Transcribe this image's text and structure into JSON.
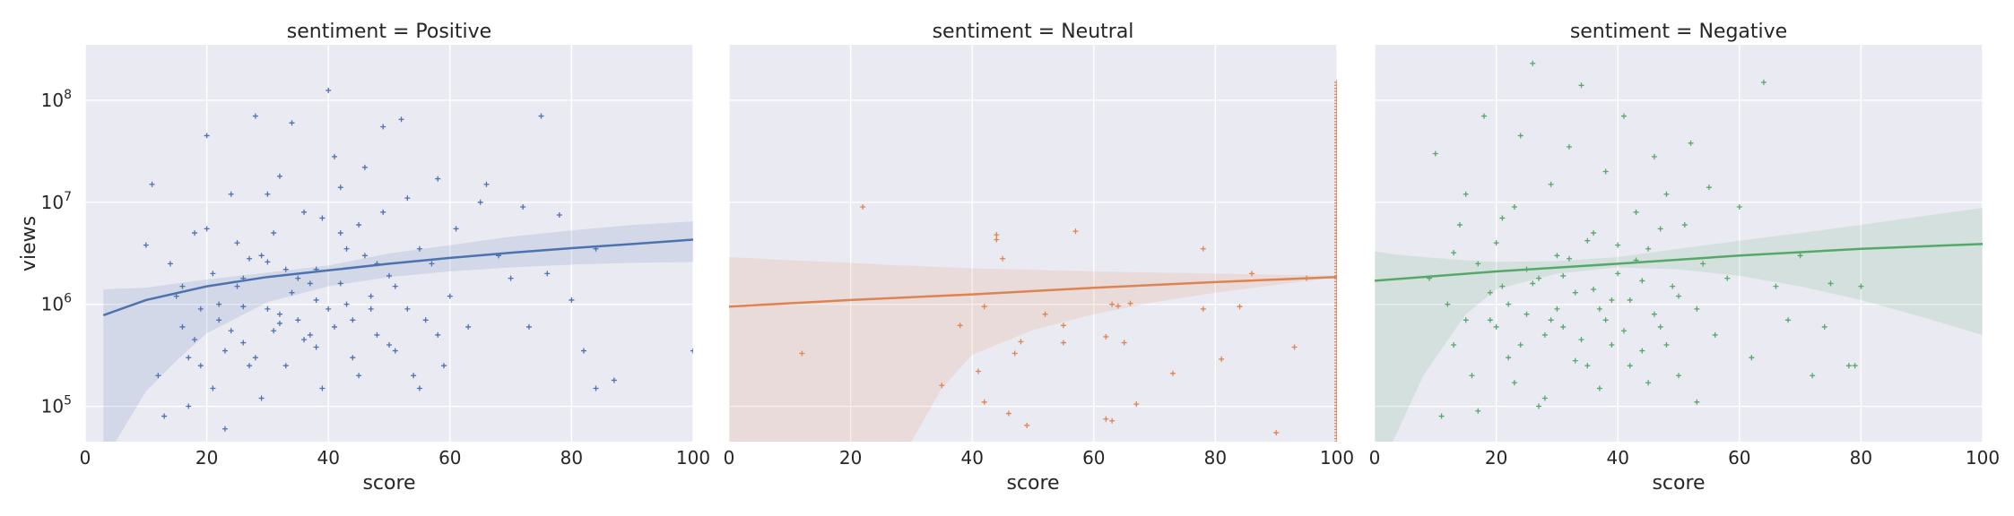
{
  "chart_data": [
    {
      "type": "scatter",
      "title": "sentiment = Positive",
      "xlabel": "score",
      "ylabel": "views",
      "xlim": [
        0,
        100
      ],
      "ylim": [
        45000,
        350000000
      ],
      "yscale": "log",
      "grid": true,
      "color": "#4c72b0",
      "marker": "+",
      "x_ticks": [
        "0",
        "20",
        "40",
        "60",
        "80",
        "100"
      ],
      "y_ticks": [
        "10^5",
        "10^6",
        "10^7",
        "10^8"
      ],
      "trend": {
        "x": [
          3,
          10,
          20,
          30,
          40,
          50,
          60,
          70,
          80,
          90,
          100
        ],
        "y": [
          780000,
          1100000,
          1500000,
          1850000,
          2150000,
          2500000,
          2850000,
          3200000,
          3550000,
          3900000,
          4300000
        ]
      },
      "band": {
        "x": [
          3,
          5,
          10,
          15,
          20,
          30,
          40,
          50,
          60,
          70,
          80,
          90,
          100
        ],
        "lower": [
          1,
          45000,
          140000,
          280000,
          520000,
          1050000,
          1500000,
          1850000,
          2100000,
          2300000,
          2450000,
          2550000,
          2600000
        ],
        "upper": [
          1400000,
          1420000,
          1450000,
          1600000,
          1750000,
          2050000,
          2400000,
          3150000,
          3800000,
          4600000,
          5300000,
          6000000,
          6500000
        ]
      },
      "points": [
        [
          10,
          3800000
        ],
        [
          11,
          15000000
        ],
        [
          14,
          2500000
        ],
        [
          15,
          1200000
        ],
        [
          16,
          600000
        ],
        [
          17,
          300000
        ],
        [
          18,
          5000000
        ],
        [
          19,
          900000
        ],
        [
          20,
          45000000
        ],
        [
          21,
          2000000
        ],
        [
          22,
          700000
        ],
        [
          23,
          350000
        ],
        [
          24,
          12000000
        ],
        [
          25,
          1500000
        ],
        [
          26,
          420000
        ],
        [
          27,
          250000
        ],
        [
          28,
          70000000
        ],
        [
          29,
          3000000
        ],
        [
          30,
          900000
        ],
        [
          31,
          550000
        ],
        [
          32,
          18000000
        ],
        [
          33,
          2200000
        ],
        [
          34,
          60000000
        ],
        [
          35,
          700000
        ],
        [
          36,
          8000000
        ],
        [
          37,
          1600000
        ],
        [
          38,
          380000
        ],
        [
          39,
          150000
        ],
        [
          40,
          125000000
        ],
        [
          41,
          28000000
        ],
        [
          42,
          5000000
        ],
        [
          43,
          1000000
        ],
        [
          44,
          300000
        ],
        [
          45,
          6000000
        ],
        [
          46,
          22000000
        ],
        [
          47,
          900000
        ],
        [
          48,
          2500000
        ],
        [
          49,
          55000000
        ],
        [
          50,
          400000
        ],
        [
          51,
          1500000
        ],
        [
          52,
          65000000
        ],
        [
          53,
          11000000
        ],
        [
          54,
          200000
        ],
        [
          55,
          3500000
        ],
        [
          56,
          700000
        ],
        [
          58,
          17000000
        ],
        [
          59,
          250000
        ],
        [
          60,
          1200000
        ],
        [
          61,
          5500000
        ],
        [
          63,
          600000
        ],
        [
          65,
          10000000
        ],
        [
          66,
          15000000
        ],
        [
          68,
          3000000
        ],
        [
          70,
          1800000
        ],
        [
          72,
          9000000
        ],
        [
          73,
          600000
        ],
        [
          75,
          70000000
        ],
        [
          76,
          2000000
        ],
        [
          78,
          7500000
        ],
        [
          80,
          1100000
        ],
        [
          82,
          350000
        ],
        [
          84,
          3500000
        ],
        [
          84,
          150000
        ],
        [
          87,
          180000
        ],
        [
          100,
          350000
        ],
        [
          12,
          200000
        ],
        [
          13,
          80000
        ],
        [
          16,
          1500000
        ],
        [
          18,
          450000
        ],
        [
          21,
          150000
        ],
        [
          23,
          60000
        ],
        [
          25,
          4000000
        ],
        [
          27,
          2800000
        ],
        [
          29,
          120000
        ],
        [
          31,
          5000000
        ],
        [
          33,
          250000
        ],
        [
          35,
          1800000
        ],
        [
          37,
          500000
        ],
        [
          39,
          7000000
        ],
        [
          41,
          600000
        ],
        [
          43,
          3500000
        ],
        [
          45,
          200000
        ],
        [
          47,
          1200000
        ],
        [
          49,
          8000000
        ],
        [
          51,
          350000
        ],
        [
          53,
          900000
        ],
        [
          55,
          150000
        ],
        [
          57,
          2500000
        ],
        [
          22,
          1000000
        ],
        [
          24,
          550000
        ],
        [
          26,
          1800000
        ],
        [
          28,
          300000
        ],
        [
          30,
          2600000
        ],
        [
          32,
          800000
        ],
        [
          34,
          1300000
        ],
        [
          36,
          450000
        ],
        [
          38,
          2200000
        ],
        [
          40,
          900000
        ],
        [
          42,
          1600000
        ],
        [
          44,
          700000
        ],
        [
          46,
          3000000
        ],
        [
          48,
          500000
        ],
        [
          50,
          1900000
        ],
        [
          19,
          250000
        ],
        [
          26,
          950000
        ],
        [
          32,
          650000
        ],
        [
          38,
          1100000
        ],
        [
          17,
          100000
        ],
        [
          20,
          5500000
        ],
        [
          30,
          12000000
        ],
        [
          42,
          14000000
        ],
        [
          58,
          500000
        ]
      ]
    },
    {
      "type": "scatter",
      "title": "sentiment = Neutral",
      "xlabel": "score",
      "ylabel": "",
      "xlim": [
        0,
        100
      ],
      "ylim": [
        45000,
        350000000
      ],
      "yscale": "log",
      "grid": true,
      "color": "#dd8452",
      "marker": "+",
      "x_ticks": [
        "0",
        "20",
        "40",
        "60",
        "80",
        "100"
      ],
      "trend": {
        "x": [
          0,
          20,
          40,
          60,
          80,
          100
        ],
        "y": [
          950000,
          1100000,
          1250000,
          1450000,
          1650000,
          1850000
        ]
      },
      "band": {
        "x": [
          0,
          10,
          20,
          28,
          30,
          35,
          40,
          50,
          60,
          70,
          80,
          90,
          100
        ],
        "lower": [
          1,
          1,
          1,
          1,
          45000,
          150000,
          320000,
          560000,
          800000,
          1050000,
          1300000,
          1550000,
          1850000
        ],
        "upper": [
          2900000,
          2700000,
          2550000,
          2400000,
          2380000,
          2320000,
          2250000,
          2180000,
          2100000,
          2050000,
          2000000,
          1950000,
          1900000
        ]
      },
      "points": [
        [
          12,
          330000
        ],
        [
          22,
          9000000
        ],
        [
          35,
          160000
        ],
        [
          38,
          620000
        ],
        [
          41,
          220000
        ],
        [
          42,
          950000
        ],
        [
          42,
          110000
        ],
        [
          44,
          4800000
        ],
        [
          44,
          4300000
        ],
        [
          45,
          2800000
        ],
        [
          46,
          85000
        ],
        [
          47,
          330000
        ],
        [
          48,
          430000
        ],
        [
          49,
          65000
        ],
        [
          52,
          800000
        ],
        [
          55,
          620000
        ],
        [
          55,
          420000
        ],
        [
          57,
          5200000
        ],
        [
          62,
          75000
        ],
        [
          62,
          480000
        ],
        [
          63,
          72000
        ],
        [
          63,
          1000000
        ],
        [
          64,
          960000
        ],
        [
          65,
          420000
        ],
        [
          66,
          1020000
        ],
        [
          67,
          105000
        ],
        [
          73,
          210000
        ],
        [
          78,
          3500000
        ],
        [
          78,
          900000
        ],
        [
          81,
          290000
        ],
        [
          84,
          950000
        ],
        [
          86,
          2000000
        ],
        [
          90,
          55000
        ],
        [
          93,
          380000
        ],
        [
          95,
          1800000
        ]
      ],
      "column_points": {
        "x": 100,
        "count": 120,
        "min": 45000,
        "max": 150000000
      }
    },
    {
      "type": "scatter",
      "title": "sentiment = Negative",
      "xlabel": "score",
      "ylabel": "",
      "xlim": [
        0,
        100
      ],
      "ylim": [
        45000,
        350000000
      ],
      "yscale": "log",
      "grid": true,
      "color": "#55a868",
      "marker": "+",
      "x_ticks": [
        "0",
        "20",
        "40",
        "60",
        "80",
        "100"
      ],
      "trend": {
        "x": [
          0,
          20,
          40,
          60,
          80,
          100
        ],
        "y": [
          1700000,
          2100000,
          2500000,
          3000000,
          3500000,
          3900000
        ]
      },
      "band": {
        "x": [
          0,
          3,
          8,
          15,
          20,
          30,
          40,
          50,
          60,
          70,
          80,
          90,
          100
        ],
        "lower": [
          1,
          45000,
          200000,
          800000,
          1400000,
          2000000,
          2300000,
          2200000,
          1900000,
          1500000,
          1100000,
          750000,
          500000
        ],
        "upper": [
          3300000,
          3100000,
          2900000,
          2700000,
          2600000,
          2650000,
          2900000,
          3500000,
          4200000,
          5000000,
          6000000,
          7300000,
          8800000
        ]
      },
      "points": [
        [
          9,
          1800000
        ],
        [
          10,
          30000000
        ],
        [
          12,
          1000000
        ],
        [
          13,
          400000
        ],
        [
          14,
          6000000
        ],
        [
          15,
          12000000
        ],
        [
          16,
          200000
        ],
        [
          17,
          2500000
        ],
        [
          18,
          70000000
        ],
        [
          19,
          700000
        ],
        [
          20,
          4000000
        ],
        [
          21,
          1500000
        ],
        [
          22,
          300000
        ],
        [
          23,
          9000000
        ],
        [
          24,
          45000000
        ],
        [
          25,
          800000
        ],
        [
          26,
          230000000
        ],
        [
          27,
          1800000
        ],
        [
          28,
          120000
        ],
        [
          29,
          15000000
        ],
        [
          30,
          3000000
        ],
        [
          31,
          600000
        ],
        [
          32,
          35000000
        ],
        [
          33,
          1300000
        ],
        [
          34,
          140000000
        ],
        [
          35,
          250000
        ],
        [
          36,
          5000000
        ],
        [
          37,
          900000
        ],
        [
          38,
          20000000
        ],
        [
          39,
          400000
        ],
        [
          40,
          2000000
        ],
        [
          41,
          70000000
        ],
        [
          42,
          1100000
        ],
        [
          43,
          8000000
        ],
        [
          44,
          350000
        ],
        [
          45,
          3500000
        ],
        [
          46,
          28000000
        ],
        [
          47,
          600000
        ],
        [
          48,
          12000000
        ],
        [
          49,
          1500000
        ],
        [
          50,
          200000
        ],
        [
          51,
          6000000
        ],
        [
          52,
          38000000
        ],
        [
          53,
          900000
        ],
        [
          54,
          2500000
        ],
        [
          55,
          14000000
        ],
        [
          56,
          500000
        ],
        [
          58,
          1800000
        ],
        [
          60,
          9000000
        ],
        [
          62,
          300000
        ],
        [
          64,
          150000000
        ],
        [
          66,
          1500000
        ],
        [
          68,
          700000
        ],
        [
          70,
          3000000
        ],
        [
          72,
          200000
        ],
        [
          74,
          600000
        ],
        [
          75,
          1600000
        ],
        [
          78,
          250000
        ],
        [
          80,
          1500000
        ],
        [
          79,
          250000
        ],
        [
          20,
          600000
        ],
        [
          22,
          1000000
        ],
        [
          24,
          400000
        ],
        [
          26,
          1600000
        ],
        [
          28,
          500000
        ],
        [
          30,
          900000
        ],
        [
          32,
          2800000
        ],
        [
          34,
          450000
        ],
        [
          36,
          1400000
        ],
        [
          38,
          700000
        ],
        [
          40,
          3800000
        ],
        [
          42,
          250000
        ],
        [
          44,
          1700000
        ],
        [
          46,
          800000
        ],
        [
          48,
          400000
        ],
        [
          50,
          1200000
        ],
        [
          25,
          2200000
        ],
        [
          27,
          100000
        ],
        [
          29,
          700000
        ],
        [
          31,
          1900000
        ],
        [
          33,
          280000
        ],
        [
          35,
          4200000
        ],
        [
          37,
          150000
        ],
        [
          39,
          1100000
        ],
        [
          41,
          550000
        ],
        [
          43,
          2700000
        ],
        [
          45,
          170000
        ],
        [
          47,
          5500000
        ],
        [
          11,
          80000
        ],
        [
          13,
          3200000
        ],
        [
          15,
          700000
        ],
        [
          17,
          90000
        ],
        [
          19,
          1300000
        ],
        [
          21,
          7000000
        ],
        [
          23,
          170000
        ],
        [
          53,
          110000
        ]
      ]
    }
  ]
}
